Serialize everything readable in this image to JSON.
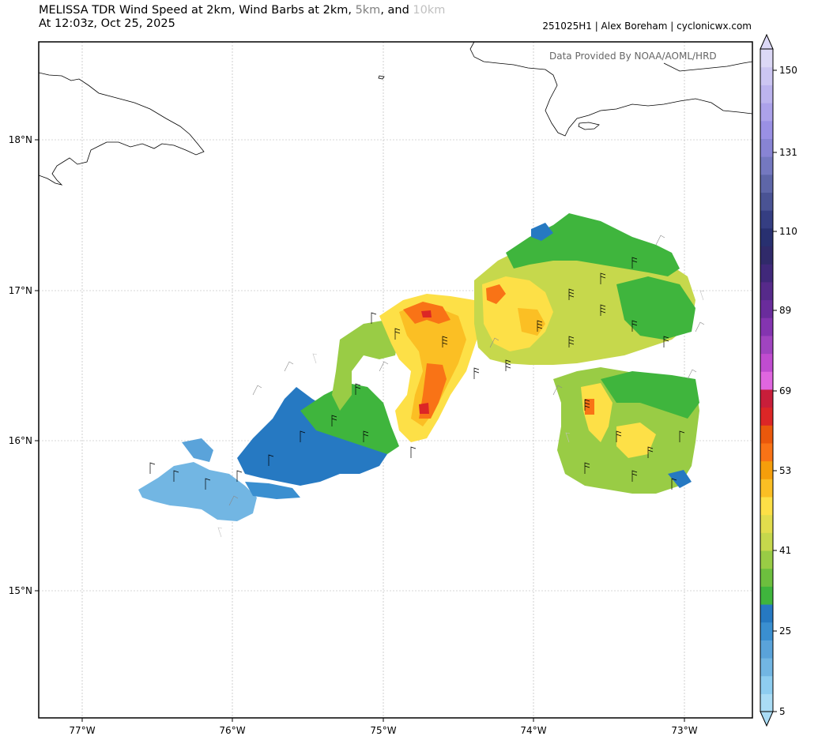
{
  "title": {
    "line1_main": "MELISSA TDR Wind Speed at 2km, Wind Barbs at 2km, ",
    "line1_km5": "5km",
    "line1_and": ", and ",
    "line1_km10": "10km",
    "line2": "At 12:03z, Oct 25, 2025"
  },
  "credit": "251025H1 | Alex Boreham | cyclonicwx.com",
  "provider": "Data Provided By NOAA/AOML/HRD",
  "axes": {
    "lon_labels": [
      "77°W",
      "76°W",
      "75°W",
      "74°W",
      "73°W"
    ],
    "lat_labels": [
      "18°N",
      "17°N",
      "16°N",
      "15°N"
    ]
  },
  "colorbar": {
    "tick_labels": [
      "5",
      "25",
      "41",
      "53",
      "69",
      "89",
      "110",
      "131",
      "150"
    ],
    "colors": [
      "#aadcf5",
      "#8ecdf0",
      "#72b6e3",
      "#5aa3da",
      "#3a8fd0",
      "#2679c2",
      "#3fb53d",
      "#6dbf3e",
      "#99cc45",
      "#c6d84c",
      "#e2dd4d",
      "#fde047",
      "#fbbf24",
      "#f59e0b",
      "#f97316",
      "#ea580c",
      "#dc2626",
      "#c81e3a",
      "#e066e0",
      "#c04cd0",
      "#a044c0",
      "#8434b0",
      "#6a2c9c",
      "#562a8a",
      "#40287a",
      "#302a6a",
      "#283070",
      "#353e82",
      "#4a5394",
      "#5e66a8",
      "#7478c0",
      "#8884d4",
      "#9a90e4",
      "#aca2ea",
      "#bcb4ee",
      "#ccc6f2",
      "#dcd8f6"
    ]
  },
  "map_data": {
    "region": "Caribbean Sea between Jamaica and Haiti",
    "lon_range": [
      -77.3,
      -72.55
    ],
    "lat_range": [
      14.2,
      18.65
    ],
    "variable": "wind speed (kt) at 2km with wind barbs at 2, 5, 10 km",
    "max_wind_area_color": "#dc2626"
  }
}
